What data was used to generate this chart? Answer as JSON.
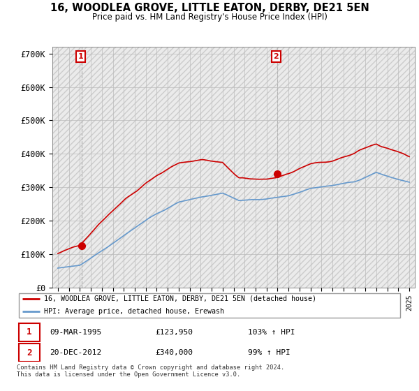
{
  "title": "16, WOODLEA GROVE, LITTLE EATON, DERBY, DE21 5EN",
  "subtitle": "Price paid vs. HM Land Registry's House Price Index (HPI)",
  "legend_line1": "16, WOODLEA GROVE, LITTLE EATON, DERBY, DE21 5EN (detached house)",
  "legend_line2": "HPI: Average price, detached house, Erewash",
  "footnote": "Contains HM Land Registry data © Crown copyright and database right 2024.\nThis data is licensed under the Open Government Licence v3.0.",
  "sale1_date": "09-MAR-1995",
  "sale1_price": "£123,950",
  "sale1_hpi": "103% ↑ HPI",
  "sale2_date": "20-DEC-2012",
  "sale2_price": "£340,000",
  "sale2_hpi": "99% ↑ HPI",
  "ylim": [
    0,
    720000
  ],
  "yticks": [
    0,
    100000,
    200000,
    300000,
    400000,
    500000,
    600000,
    700000
  ],
  "ytick_labels": [
    "£0",
    "£100K",
    "£200K",
    "£300K",
    "£400K",
    "£500K",
    "£600K",
    "£700K"
  ],
  "hpi_color": "#6699cc",
  "sale_color": "#cc0000",
  "grid_color": "#bbbbbb",
  "marker1_x": 1995.19,
  "marker1_y": 123950,
  "marker2_x": 2012.97,
  "marker2_y": 340000,
  "sale_marker_size": 7,
  "xmin": 1993,
  "xmax": 2025
}
